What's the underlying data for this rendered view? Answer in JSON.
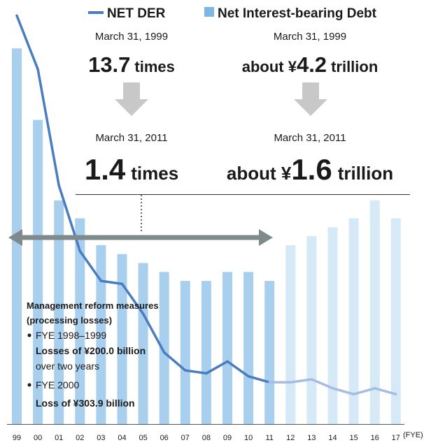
{
  "chart_data": {
    "type": "bar_line",
    "x_label": "(FYE)",
    "categories": [
      "99",
      "00",
      "01",
      "02",
      "03",
      "04",
      "05",
      "06",
      "07",
      "08",
      "09",
      "10",
      "11",
      "12",
      "13",
      "14",
      "15",
      "16",
      "17"
    ],
    "series": [
      {
        "name": "Net Interest-bearing Debt",
        "type": "bar",
        "color": "#a9cfee",
        "colors": [
          "#a9cfee",
          "#a9cfee",
          "#a9cfee",
          "#a9cfee",
          "#a9cfee",
          "#a9cfee",
          "#a9cfee",
          "#a9cfee",
          "#a9cfee",
          "#a9cfee",
          "#a9cfee",
          "#a9cfee",
          "#a9cfee",
          "#d6e9f7",
          "#d6e9f7",
          "#d6e9f7",
          "#d6e9f7",
          "#d6e9f7",
          "#d6e9f7"
        ],
        "values": [
          4.2,
          3.4,
          2.5,
          2.3,
          2.0,
          1.9,
          1.8,
          1.7,
          1.6,
          1.6,
          1.7,
          1.7,
          1.6,
          2.0,
          2.1,
          2.2,
          2.3,
          2.5,
          2.3
        ]
      },
      {
        "name": "NET DER",
        "type": "line",
        "axis": "y2",
        "color": "#4a7cc0",
        "colors": [
          "#4a7cc0",
          "#4a7cc0",
          "#4a7cc0",
          "#4a7cc0",
          "#4a7cc0",
          "#4a7cc0",
          "#4a7cc0",
          "#4a7cc0",
          "#4a7cc0",
          "#4a7cc0",
          "#4a7cc0",
          "#4a7cc0",
          "#4a7cc0",
          "#a3bde3",
          "#a3bde3",
          "#a3bde3",
          "#a3bde3",
          "#a3bde3",
          "#a3bde3"
        ],
        "values": [
          13.7,
          11.9,
          8.0,
          5.8,
          4.8,
          4.7,
          3.7,
          2.4,
          1.8,
          1.7,
          2.1,
          1.6,
          1.4,
          1.4,
          1.5,
          1.2,
          1.0,
          1.2,
          1.0
        ]
      }
    ],
    "ylim": [
      0,
      4.6
    ],
    "y2lim": [
      0,
      13.8
    ],
    "callouts": [
      {
        "date": "March 31, 1999",
        "value": "13.7",
        "unit": "times"
      },
      {
        "date": "March 31, 1999",
        "prefix": "about ¥",
        "value": "4.2",
        "unit": "trillion"
      },
      {
        "date": "March 31, 2011",
        "value": "1.4",
        "unit": "times"
      },
      {
        "date": "March 31, 2011",
        "prefix": "about ¥",
        "value": "1.6",
        "unit": "trillion"
      }
    ],
    "notes": [
      "Management reform measures",
      "(processing losses)",
      "FYE 1998–1999",
      "Losses of ¥200.0 billion",
      "over two years",
      "FYE 2000",
      "Loss of ¥303.9 billion"
    ]
  }
}
